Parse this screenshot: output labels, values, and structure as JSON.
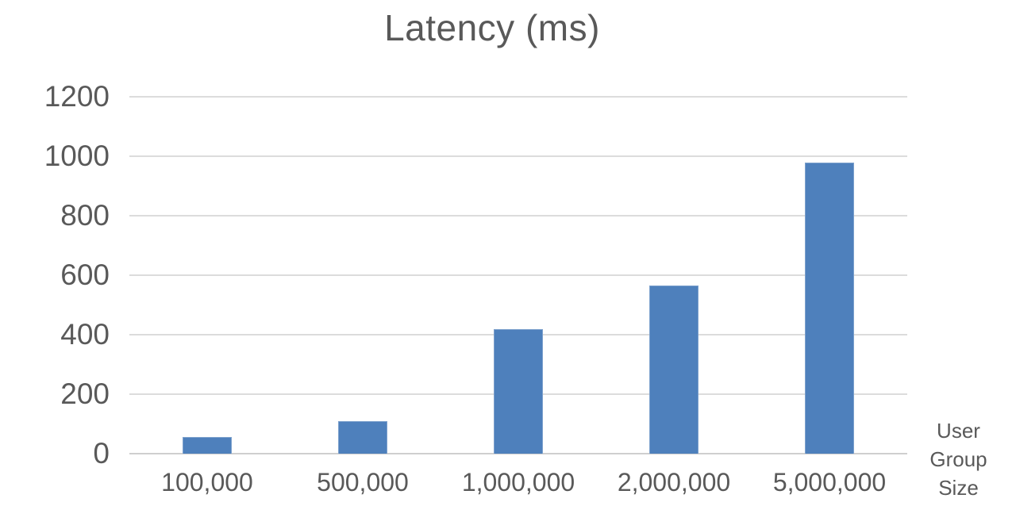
{
  "title": "Latency (ms)",
  "axis_note": {
    "lines": [
      "User",
      "Group",
      "Size"
    ]
  },
  "colors": {
    "bar_fill": "#4e80bc",
    "bar_border": "#7da1cd",
    "gridline": "#dcdcdc",
    "axis_line": "#cfcfcf",
    "text": "#595959",
    "background": "#ffffff"
  },
  "chart_data": {
    "type": "bar",
    "title": "Latency (ms)",
    "categories": [
      "100,000",
      "500,000",
      "1,000,000",
      "2,000,000",
      "5,000,000"
    ],
    "values": [
      55,
      110,
      420,
      565,
      980
    ],
    "xlabel": "User Group Size",
    "ylabel": "",
    "ylim": [
      0,
      1200
    ],
    "yticks": [
      0,
      200,
      400,
      600,
      800,
      1000,
      1200
    ],
    "grid": true,
    "legend": false,
    "series_name": "Latency (ms)"
  }
}
